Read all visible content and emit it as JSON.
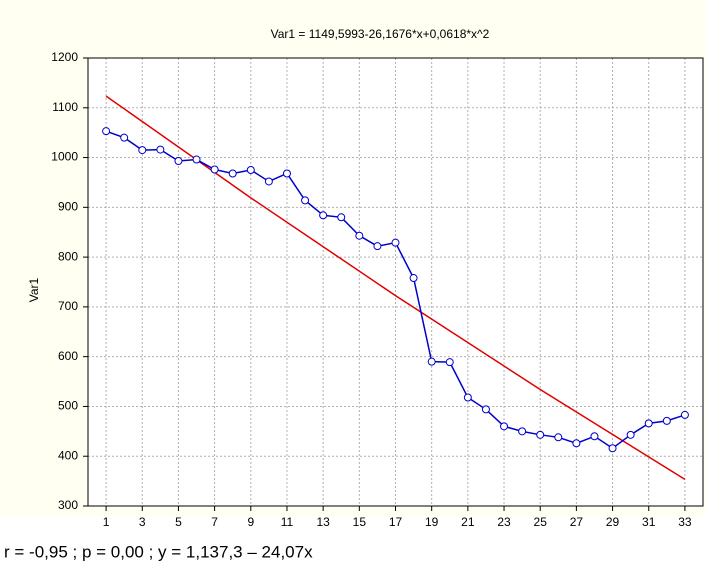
{
  "chart_data": {
    "type": "line",
    "title": "Var1 = 1149,5993-26,1676*x+0,0618*x^2",
    "y_label": "Var1",
    "caption": "r = -0,95 ; p = 0,00 ; y = 1,137,3 – 24,07x",
    "x": [
      1,
      2,
      3,
      4,
      5,
      6,
      7,
      8,
      9,
      10,
      11,
      12,
      13,
      14,
      15,
      16,
      17,
      18,
      19,
      20,
      21,
      22,
      23,
      24,
      25,
      26,
      27,
      28,
      29,
      30,
      31,
      32,
      33
    ],
    "series": [
      {
        "color": "#0000cc",
        "values": [
          1053,
          1040,
          1015,
          1016,
          993,
          996,
          976,
          968,
          975,
          952,
          968,
          914,
          884,
          880,
          843,
          822,
          829,
          758,
          590,
          589,
          518,
          494,
          460,
          450,
          443,
          438,
          426,
          440,
          416,
          443,
          466,
          471,
          483
        ]
      }
    ],
    "fit": {
      "color": "#e00000",
      "x": [
        1,
        9,
        17,
        25,
        33
      ],
      "values": [
        1123.5,
        919.1,
        722.7,
        534.0,
        353.4
      ]
    },
    "xlim": [
      0,
      34
    ],
    "xticks": [
      1,
      3,
      5,
      7,
      9,
      11,
      13,
      15,
      17,
      19,
      21,
      23,
      25,
      27,
      29,
      31,
      33
    ],
    "ylim": [
      300,
      1200
    ],
    "yticks": [
      300,
      400,
      500,
      600,
      700,
      800,
      900,
      1000,
      1100,
      1200
    ],
    "grid": true
  }
}
